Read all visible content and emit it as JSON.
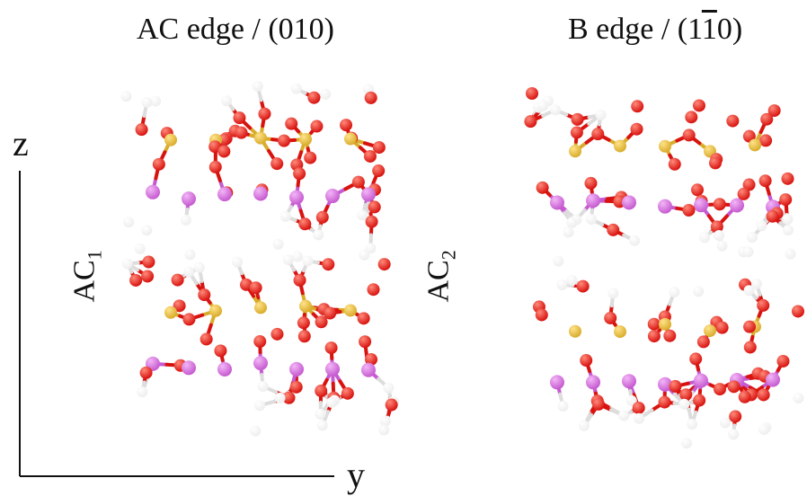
{
  "titles": {
    "left": "AC edge / (010)",
    "right_prefix": "B edge / (1",
    "right_overline": "1",
    "right_suffix": "0)"
  },
  "axes": {
    "vertical": "z",
    "horizontal": "y"
  },
  "side_labels": {
    "left_main": "AC",
    "left_sub": "1",
    "right_main": "AC",
    "right_sub": "2"
  },
  "atom_colors": {
    "oxygen": "#d8130f",
    "silicon": "#d9ac2c",
    "metal": "#c65bd0",
    "hydrogen": "#eeeeee"
  },
  "panels": [
    "ac-edge-010",
    "b-edge-1-10"
  ]
}
